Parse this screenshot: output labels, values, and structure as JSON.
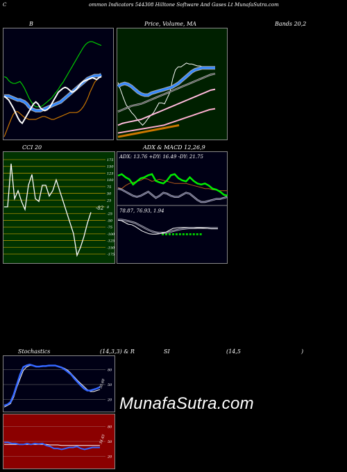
{
  "header": {
    "c": "C",
    "title": "ommon  Indicators 544308  Hilltone  Software  And Gases Lt MunafaSutra.com"
  },
  "labels": {
    "b": "B",
    "price_ma": "Price,  Volume,  MA",
    "bands": "Bands 20,2",
    "cci": "CCI 20",
    "adx_macd": "ADX  & MACD 12,26,9",
    "adx_values": "ADX: 13.76   +DY: 16.49 -DY: 21.75",
    "macd_values": "78.87,  76.93,  1.94",
    "stoch": "Stochastics",
    "stoch_params": "(14,3,3) & R",
    "si": "SI",
    "rsi_params": "(14,5",
    "close_paren": ")",
    "cci_value": "-82",
    "watermark": "MunafaSutra.com",
    "stoch_reading": "30.60",
    "rsi_reading": "34.45"
  },
  "colors": {
    "bollinger_bg": "#000015",
    "price_bg": "#002000",
    "cci_bg": "#003300",
    "adx_bg": "#000015",
    "stoch_bg": "#000015",
    "rsi_bg": "#8b0000",
    "blue": "#3388ff",
    "green": "#00cc00",
    "orange": "#cc7700"
  },
  "chart_data": [
    {
      "type": "line",
      "name": "bollinger",
      "series": [
        {
          "role": "upper",
          "values": [
            64,
            63,
            60,
            58,
            57,
            57,
            58,
            59,
            56,
            52,
            47,
            42,
            38,
            35,
            33,
            33,
            33,
            34,
            36,
            38,
            40,
            42,
            45,
            48,
            51,
            55,
            58,
            62,
            66,
            70,
            74,
            78,
            82,
            86,
            90,
            94,
            97,
            99,
            100,
            100,
            99,
            98,
            97,
            96
          ]
        },
        {
          "role": "middle",
          "values": [
            44,
            44,
            44,
            43,
            42,
            41,
            40,
            40,
            39,
            38,
            36,
            33,
            31,
            30,
            29,
            29,
            29,
            30,
            31,
            32,
            33,
            34,
            35,
            36,
            37,
            38,
            40,
            42,
            44,
            46,
            48,
            50,
            52,
            54,
            56,
            58,
            60,
            62,
            63,
            64,
            65,
            65,
            65,
            66
          ]
        },
        {
          "role": "lower",
          "values": [
            2,
            8,
            14,
            20,
            25,
            28,
            28,
            26,
            24,
            22,
            21,
            20,
            20,
            20,
            20,
            21,
            22,
            23,
            23,
            22,
            21,
            20,
            20,
            21,
            22,
            23,
            24,
            25,
            26,
            27,
            27,
            27,
            27,
            28,
            30,
            33,
            37,
            42,
            48,
            53,
            58,
            61,
            63,
            64
          ]
        },
        {
          "role": "close",
          "values": [
            44,
            42,
            40,
            36,
            32,
            27,
            22,
            18,
            16,
            20,
            24,
            28,
            32,
            36,
            38,
            36,
            32,
            30,
            29,
            30,
            32,
            36,
            40,
            44,
            48,
            50,
            52,
            53,
            52,
            50,
            48,
            49,
            51,
            54,
            57,
            59,
            60,
            61,
            62,
            63,
            62,
            61,
            63,
            64
          ]
        }
      ]
    },
    {
      "type": "line",
      "name": "price-volume-ma",
      "series": [
        {
          "role": "price",
          "values": [
            58,
            50,
            42,
            35,
            31,
            27,
            24,
            20,
            17,
            14,
            17,
            21,
            24,
            27,
            32,
            37,
            37,
            36,
            42,
            48,
            62,
            71,
            74,
            74,
            76,
            78,
            77,
            77,
            76,
            75,
            75,
            74,
            74,
            73,
            73,
            72
          ]
        },
        {
          "role": "ma-blue",
          "values": [
            54,
            56,
            57,
            56,
            54,
            51,
            48,
            46,
            45,
            45,
            47,
            48,
            49,
            50,
            51,
            52,
            53,
            55,
            57,
            60,
            63,
            66,
            69,
            71,
            72,
            73,
            73,
            73,
            73,
            73
          ]
        },
        {
          "role": "ma-1",
          "values": [
            28,
            30,
            32,
            34,
            35,
            36,
            38,
            40,
            42,
            44,
            46,
            48,
            50,
            52,
            54,
            56,
            58,
            60,
            62,
            64,
            66,
            67
          ]
        },
        {
          "role": "ma-2",
          "values": [
            14,
            16,
            17,
            18,
            19,
            20,
            22,
            24,
            26,
            28,
            30,
            32,
            34,
            36,
            38,
            40,
            42,
            44,
            46,
            48,
            50,
            51
          ]
        },
        {
          "role": "volume-ma",
          "values": [
            6,
            7,
            8,
            9,
            10,
            11,
            12,
            13,
            14,
            16,
            18,
            20,
            22,
            24,
            26,
            28,
            30,
            31
          ]
        },
        {
          "role": "volume-ma-2",
          "values": [
            2,
            3,
            4,
            5,
            6,
            7,
            8,
            9,
            10,
            11,
            12,
            13,
            14
          ]
        }
      ]
    },
    {
      "type": "line",
      "name": "cci",
      "series": [
        {
          "role": "cci",
          "values": [
            0,
            0,
            160,
            30,
            60,
            20,
            -10,
            80,
            120,
            30,
            20,
            80,
            80,
            40,
            60,
            100,
            60,
            20,
            -20,
            -60,
            -100,
            -180,
            -150,
            -110,
            -60,
            -20
          ]
        }
      ],
      "ticks": [
        175,
        150,
        125,
        100,
        75,
        50,
        25,
        0,
        -25,
        -50,
        -75,
        -100,
        -125,
        -150,
        -175
      ]
    },
    {
      "type": "line",
      "name": "adx",
      "series": [
        {
          "role": "+di",
          "values": [
            55,
            58,
            52,
            48,
            38,
            44,
            50,
            52,
            56,
            58,
            45,
            42,
            40,
            46,
            56,
            58,
            50,
            46,
            44,
            52,
            45,
            40,
            38,
            40,
            36,
            30,
            28,
            24,
            18,
            16
          ]
        },
        {
          "role": "-di",
          "values": [
            32,
            30,
            36,
            40,
            42,
            44,
            46,
            50,
            48,
            44,
            46,
            48,
            46,
            44,
            42,
            40,
            40,
            40,
            40,
            38,
            36,
            34,
            32,
            30,
            30,
            28,
            27,
            26,
            26,
            26
          ]
        },
        {
          "role": "adx",
          "values": [
            30,
            28,
            24,
            20,
            16,
            14,
            16,
            20,
            24,
            18,
            12,
            16,
            22,
            20,
            16,
            14,
            14,
            18,
            22,
            20,
            14,
            8,
            4,
            4,
            6,
            8,
            10,
            10,
            12,
            14
          ]
        }
      ]
    },
    {
      "type": "line",
      "name": "macd",
      "series": [
        {
          "role": "macd",
          "values": [
            90,
            88,
            80,
            72,
            70,
            62,
            52,
            42,
            36,
            30,
            28,
            28,
            30,
            34,
            38,
            46,
            54,
            56,
            58,
            58,
            58,
            57,
            57,
            56,
            56,
            55,
            54,
            52,
            52,
            52
          ]
        },
        {
          "role": "signal",
          "values": [
            92,
            92,
            90,
            86,
            82,
            78,
            70,
            62,
            54,
            46,
            40,
            36,
            34,
            34,
            35,
            38,
            42,
            46,
            50,
            52,
            54,
            55,
            55,
            56,
            56,
            56,
            56,
            55,
            55,
            55
          ]
        }
      ]
    },
    {
      "type": "line",
      "name": "stochastics",
      "ticks": [
        80,
        50,
        20
      ],
      "series": [
        {
          "role": "%K",
          "values": [
            8,
            10,
            15,
            30,
            50,
            70,
            85,
            88,
            90,
            88,
            86,
            86,
            87,
            87,
            88,
            88,
            88,
            86,
            84,
            80,
            75,
            70,
            62,
            55,
            48,
            42,
            38,
            38,
            40,
            42,
            45
          ]
        },
        {
          "role": "%D",
          "values": [
            5,
            8,
            12,
            25,
            45,
            62,
            78,
            85,
            88,
            88,
            87,
            86,
            86,
            87,
            87,
            88,
            88,
            87,
            85,
            82,
            78,
            72,
            65,
            58,
            52,
            46,
            40,
            36,
            36,
            38,
            40
          ]
        }
      ]
    },
    {
      "type": "line",
      "name": "rsi",
      "ticks": [
        80,
        50,
        20
      ],
      "series": [
        {
          "role": "rsi",
          "values": [
            48,
            48,
            46,
            46,
            44,
            44,
            46,
            44,
            46,
            45,
            46,
            42,
            40,
            36,
            36,
            34,
            36,
            38,
            38,
            40,
            36,
            34,
            36,
            38,
            38,
            38
          ]
        },
        {
          "role": "ref",
          "values": [
            44,
            44,
            44,
            44,
            44,
            44,
            44,
            44,
            44,
            44,
            44,
            44,
            43,
            43,
            43,
            42,
            42,
            42,
            42,
            42,
            42,
            42,
            42,
            42,
            42,
            42
          ]
        }
      ]
    }
  ]
}
